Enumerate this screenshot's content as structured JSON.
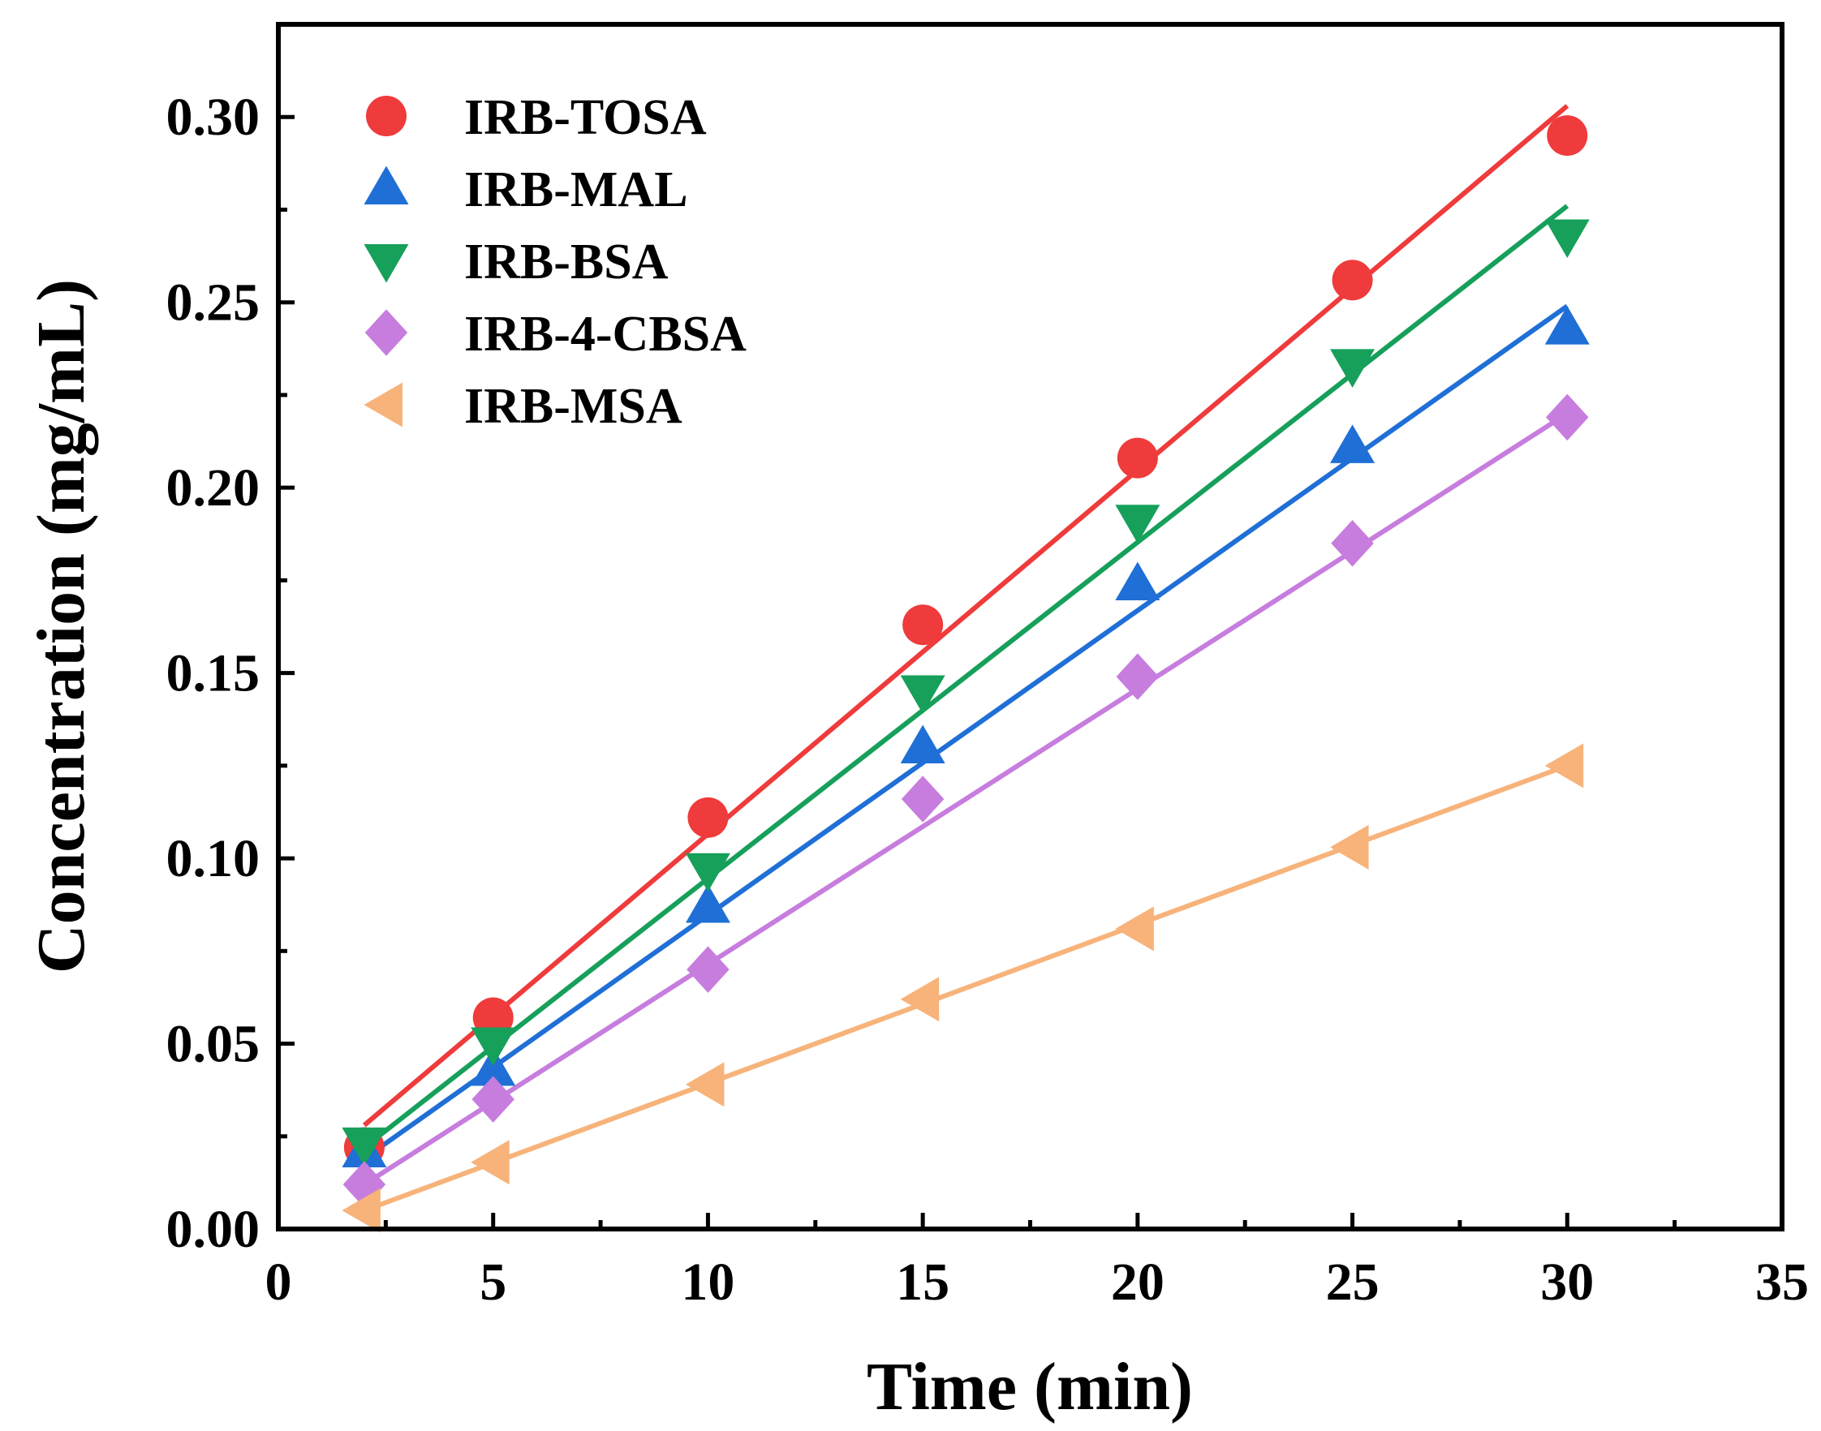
{
  "chart_data": {
    "type": "scatter",
    "title": "",
    "xlabel": "Time (min)",
    "ylabel": "Concentration (mg/mL)",
    "xlim": [
      0,
      35
    ],
    "ylim": [
      0,
      0.325
    ],
    "xticks": [
      0,
      5,
      10,
      15,
      20,
      25,
      30,
      35
    ],
    "xtick_labels": [
      "0",
      "5",
      "10",
      "15",
      "20",
      "25",
      "30",
      "35"
    ],
    "yticks": [
      0,
      0.05,
      0.1,
      0.15,
      0.2,
      0.25,
      0.3
    ],
    "ytick_labels": [
      "0.00",
      "0.05",
      "0.10",
      "0.15",
      "0.20",
      "0.25",
      "0.30"
    ],
    "grid": false,
    "legend_position": "top-left",
    "x": [
      2,
      5,
      10,
      15,
      20,
      25,
      30
    ],
    "series": [
      {
        "name": "IRB-TOSA",
        "marker": "circle",
        "color": "#ef3b3b",
        "values": [
          0.022,
          0.057,
          0.111,
          0.163,
          0.208,
          0.256,
          0.295
        ],
        "fit": [
          [
            2,
            0.028
          ],
          [
            30,
            0.303
          ]
        ]
      },
      {
        "name": "IRB-MAL",
        "marker": "triangle-up",
        "color": "#1f6fd6",
        "values": [
          0.021,
          0.043,
          0.087,
          0.13,
          0.174,
          0.211,
          0.243
        ],
        "fit": [
          [
            2,
            0.019
          ],
          [
            30,
            0.249
          ]
        ]
      },
      {
        "name": "IRB-BSA",
        "marker": "triangle-down",
        "color": "#16a05a",
        "values": [
          0.023,
          0.05,
          0.097,
          0.145,
          0.191,
          0.233,
          0.268
        ],
        "fit": [
          [
            2,
            0.022
          ],
          [
            30,
            0.276
          ]
        ]
      },
      {
        "name": "IRB-4-CBSA",
        "marker": "diamond",
        "color": "#c77dde",
        "values": [
          0.012,
          0.035,
          0.07,
          0.116,
          0.149,
          0.185,
          0.219
        ],
        "fit": [
          [
            2,
            0.012
          ],
          [
            30,
            0.22
          ]
        ]
      },
      {
        "name": "IRB-MSA",
        "marker": "triangle-left",
        "color": "#f7b37a",
        "values": [
          0.005,
          0.018,
          0.039,
          0.062,
          0.081,
          0.103,
          0.125
        ],
        "fit": [
          [
            2,
            0.005
          ],
          [
            30,
            0.125
          ]
        ]
      }
    ]
  }
}
